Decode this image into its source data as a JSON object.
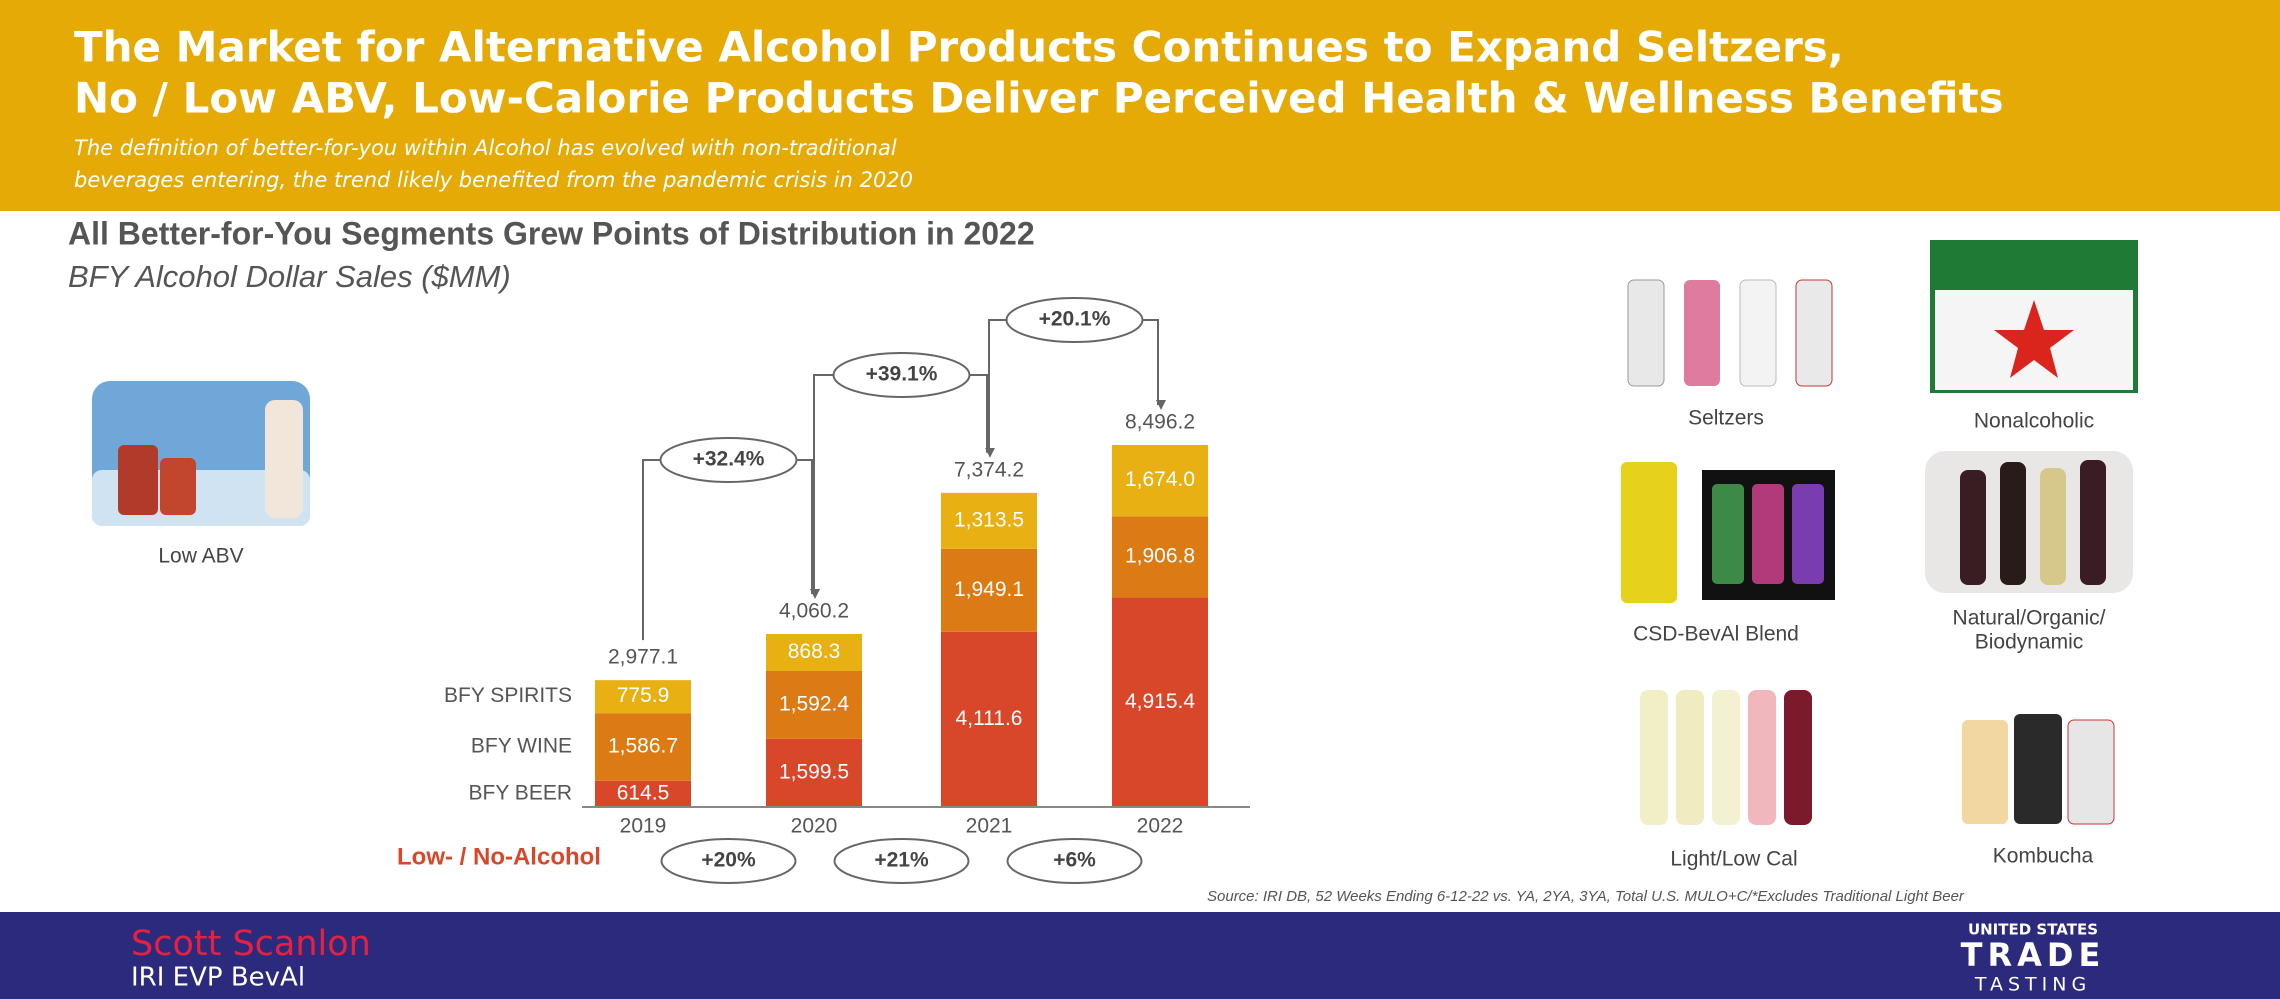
{
  "header": {
    "title_lines": [
      "The Market for Alternative Alcohol Products Continues to Expand  Seltzers,",
      "No / Low ABV, Low-Calorie Products Deliver Perceived Health & Wellness Benefits"
    ],
    "subtitle_lines": [
      "The definition of better-for-you within Alcohol has evolved with non-traditional",
      "beverages entering, the trend likely benefited from the pandemic crisis in 2020"
    ]
  },
  "chart_data": {
    "type": "bar",
    "stacked": true,
    "title": "All Better-for-You Segments Grew Points of Distribution in 2022",
    "subtitle": "BFY Alcohol Dollar Sales ($MM)",
    "categories": [
      "2019",
      "2020",
      "2021",
      "2022"
    ],
    "series": [
      {
        "name": "BFY BEER",
        "color": "#d9472b",
        "values": [
          614.5,
          1599.5,
          4111.6,
          4915.4
        ],
        "value_labels": [
          "614.5",
          "1,599.5",
          "4,111.6",
          "4,915.4"
        ]
      },
      {
        "name": "BFY WINE",
        "color": "#dc7a14",
        "values": [
          1586.7,
          1592.4,
          1949.1,
          1906.8
        ],
        "value_labels": [
          "1,586.7",
          "1,592.4",
          "1,949.1",
          "1,906.8"
        ]
      },
      {
        "name": "BFY SPIRITS",
        "color": "#e8b012",
        "values": [
          775.9,
          868.3,
          1313.5,
          1674.0
        ],
        "value_labels": [
          "775.9",
          "868.3",
          "1,313.5",
          "1,674.0"
        ]
      }
    ],
    "totals": {
      "values": [
        2977.1,
        4060.2,
        7374.2,
        8496.2
      ],
      "value_labels": [
        "2,977.1",
        "4,060.2",
        "7,374.2",
        "8,496.2"
      ]
    },
    "growth_labels": [
      "+32.4%",
      "+39.1%",
      "+20.1%"
    ],
    "low_no_alcohol": {
      "label": "Low- / No-Alcohol",
      "values": [
        "+20%",
        "+21%",
        "+6%"
      ]
    }
  },
  "products": [
    {
      "label_lines": [
        "Low ABV"
      ]
    },
    {
      "label_lines": [
        "Seltzers"
      ]
    },
    {
      "label_lines": [
        "Nonalcoholic"
      ]
    },
    {
      "label_lines": [
        "CSD-BevAl Blend"
      ]
    },
    {
      "label_lines": [
        "Natural/Organic/",
        "Biodynamic"
      ]
    },
    {
      "label_lines": [
        "Light/Low Cal"
      ]
    },
    {
      "label_lines": [
        "Kombucha"
      ]
    }
  ],
  "source": "Source: IRI DB, 52 Weeks Ending 6-12-22 vs. YA, 2YA, 3YA, Total U.S. MULO+C/*Excludes Traditional Light Beer",
  "footer": {
    "presenter": "Scott Scanlon",
    "role": "IRI EVP BevAl",
    "logo_lines": [
      "UNITED STATES",
      "TRADE",
      "TASTING"
    ]
  }
}
